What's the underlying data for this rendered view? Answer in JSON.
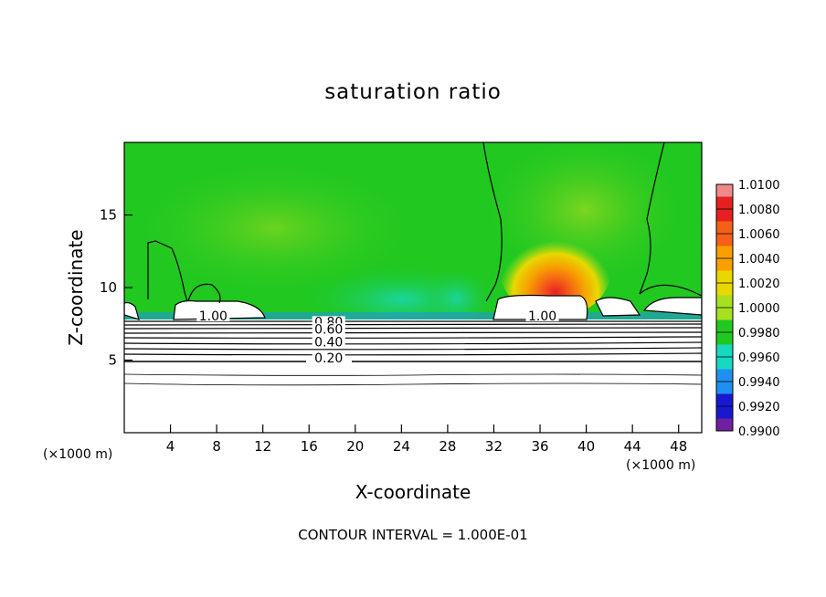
{
  "chart_data": {
    "type": "heatmap",
    "title": "saturation ratio",
    "xlabel": "X-coordinate",
    "ylabel": "Z-coordinate",
    "x_unit": "(×1000 m)",
    "y_unit": "(×1000 m)",
    "xlim": [
      0,
      50
    ],
    "ylim": [
      0,
      20
    ],
    "x_ticks": [
      4,
      8,
      12,
      16,
      20,
      24,
      28,
      32,
      36,
      40,
      44,
      48
    ],
    "y_ticks": [
      5,
      10,
      15
    ],
    "footer": "CONTOUR INTERVAL = 1.000E-01",
    "colorbar": {
      "labels": [
        "1.0100",
        "1.0080",
        "1.0060",
        "1.0040",
        "1.0020",
        "1.0000",
        "0.9980",
        "0.9960",
        "0.9940",
        "0.9920",
        "0.9900"
      ],
      "colors": [
        "#f08a8a",
        "#e62020",
        "#f56018",
        "#f7a000",
        "#e8d800",
        "#a8e020",
        "#20c820",
        "#18d8c0",
        "#2090f0",
        "#1818d0",
        "#7020a0"
      ]
    },
    "contour_labels": [
      {
        "text": "1.00",
        "x": 7.7,
        "z": 7.8
      },
      {
        "text": "1.00",
        "x": 36.2,
        "z": 7.8
      },
      {
        "text": "0.80",
        "x": 17.7,
        "z": 7.4
      },
      {
        "text": "0.60",
        "x": 17.7,
        "z": 6.9
      },
      {
        "text": "0.40",
        "x": 17.7,
        "z": 6.0
      },
      {
        "text": "0.20",
        "x": 17.7,
        "z": 4.9
      }
    ]
  }
}
